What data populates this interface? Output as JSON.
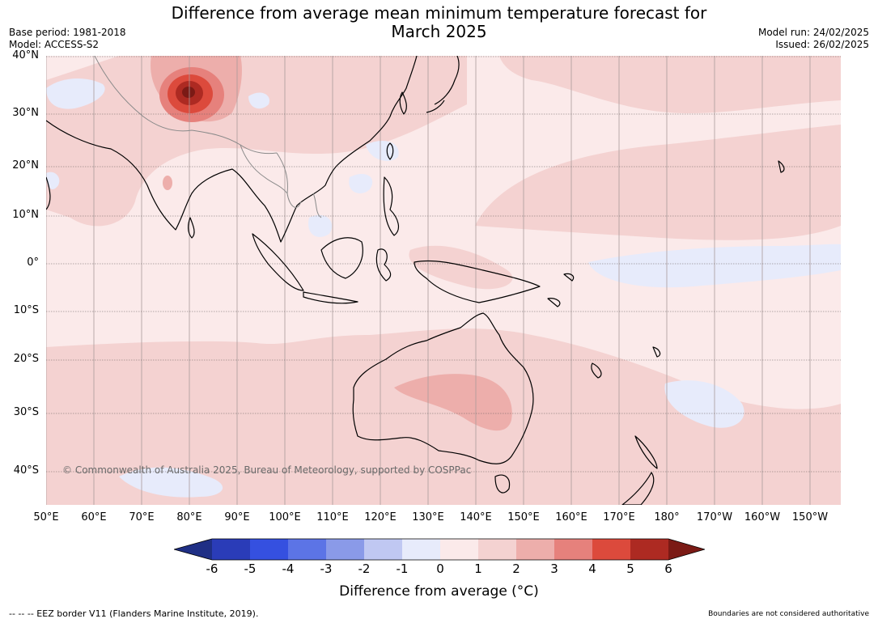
{
  "title_line1": "Difference from average mean minimum temperature forecast for",
  "title_line2": "March 2025",
  "base_period": "Base period: 1981-2018",
  "model": "Model: ACCESS-S2",
  "model_run": "Model run: 24/02/2025",
  "issued": "Issued: 26/02/2025",
  "lat_labels": [
    "40°N",
    "30°N",
    "20°N",
    "10°N",
    "0°",
    "10°S",
    "20°S",
    "30°S",
    "40°S"
  ],
  "lon_labels": [
    "50°E",
    "60°E",
    "70°E",
    "80°E",
    "90°E",
    "100°E",
    "110°E",
    "120°E",
    "130°E",
    "140°E",
    "150°E",
    "160°E",
    "170°E",
    "180°",
    "170°W",
    "160°W",
    "150°W"
  ],
  "copyright": "© Commonwealth of Australia 2025, Bureau of Meteorology, supported by COSPPac",
  "colorbar": {
    "ticks": [
      "-6",
      "-5",
      "-4",
      "-3",
      "-2",
      "-1",
      "0",
      "1",
      "2",
      "3",
      "4",
      "5",
      "6"
    ],
    "colors": [
      "#1f2f85",
      "#2a3cb8",
      "#3550e0",
      "#5c74e6",
      "#8a9ae8",
      "#c0c8f2",
      "#e7ebfb",
      "#fbeaea",
      "#f4d2d1",
      "#edaeab",
      "#e6817c",
      "#dc4a3c",
      "#ad2a22",
      "#7b1a15"
    ],
    "label": "Difference from average ($^\\circ$C)",
    "label_display": "Difference from average (°C)"
  },
  "footer_left": "--  --  -- EEZ border V11 (Flanders Marine Institute, 2019).",
  "footer_right": "Boundaries are not considered authoritative"
}
